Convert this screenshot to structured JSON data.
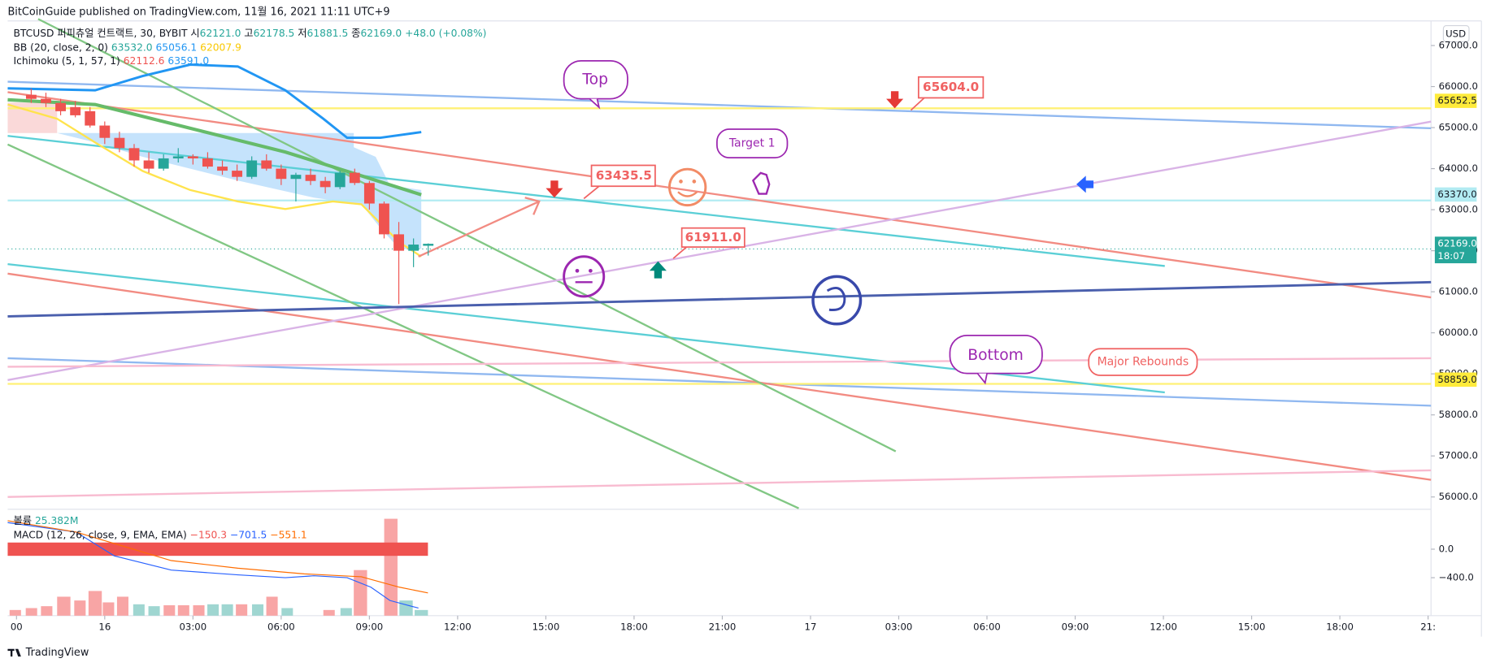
{
  "header": {
    "publisher": "BitCoinGuide published on TradingView.com, 11월 16, 2021 11:11 UTC+9"
  },
  "legend": {
    "symbol": "BTCUSD 퍼피츄얼 컨트랙트, 30, BYBIT",
    "o_label": "시",
    "o": "62121.0",
    "h_label": "고",
    "h": "62178.5",
    "l_label": "저",
    "l": "61881.5",
    "c_label": "종",
    "c": "62169.0",
    "change": "+48.0 (+0.08%)",
    "bb": "BB (20, close, 2, 0)",
    "bb_basis": "63532.0",
    "bb_upper": "65056.1",
    "bb_lower": "62007.9",
    "ichimoku": "Ichimoku (5, 1, 57, 1)",
    "ichi_a": "62112.6",
    "ichi_b": "63591.0",
    "volume": "볼륨",
    "volume_value": "25.382M",
    "macd": "MACD (12, 26, close, 9, EMA, EMA)",
    "macd_hist": "−150.3",
    "macd_line": "−701.5",
    "macd_signal": "−551.1"
  },
  "currency": "USD",
  "footer": "TradingView",
  "annotations": {
    "top": "Top",
    "target": "Target 1",
    "bottom": "Bottom",
    "rebounds": "Major Rebounds",
    "p1": "63435.5",
    "p2": "65604.0",
    "p3": "61911.0"
  },
  "chart_data": {
    "type": "candlestick",
    "up_color": "#26a69a",
    "down_color": "#ef5350",
    "x": [
      -2.5,
      -2,
      -1.5,
      -1,
      -0.5,
      0,
      0.5,
      1,
      1.5,
      2,
      2.5,
      3,
      3.5,
      4,
      4.5,
      5,
      5.5,
      6,
      6.5,
      7,
      7.5,
      8,
      8.5,
      9,
      9.5,
      10,
      10.5,
      11
    ],
    "open": [
      65800,
      65700,
      65600,
      65500,
      65400,
      65050,
      64750,
      64500,
      64200,
      64000,
      64250,
      64300,
      64250,
      64050,
      63950,
      63800,
      64200,
      64000,
      63750,
      63850,
      63700,
      63550,
      63900,
      63650,
      63150,
      62400,
      62000,
      62121
    ],
    "high": [
      65950,
      65850,
      65700,
      65650,
      65500,
      65150,
      64900,
      64600,
      64400,
      64350,
      64500,
      64350,
      64400,
      64200,
      64100,
      64300,
      64350,
      64100,
      63900,
      64000,
      63800,
      63950,
      64000,
      63700,
      63200,
      62700,
      62300,
      62178.5
    ],
    "low": [
      65600,
      65500,
      65300,
      65250,
      65000,
      64600,
      64400,
      64050,
      63900,
      63950,
      64150,
      64100,
      64000,
      63850,
      63700,
      63750,
      63950,
      63600,
      63200,
      63600,
      63400,
      63500,
      63600,
      63000,
      62300,
      60700,
      61600,
      61881.5
    ],
    "close": [
      65700,
      65600,
      65400,
      65300,
      65050,
      64750,
      64500,
      64200,
      64000,
      64250,
      64300,
      64250,
      64050,
      63950,
      63800,
      64200,
      64000,
      63750,
      63850,
      63700,
      63550,
      63900,
      63650,
      63150,
      62400,
      62000,
      62150,
      62169
    ],
    "ylim": [
      55700,
      67600
    ],
    "yticks": [
      {
        "value": 56000,
        "label": "56000.0"
      },
      {
        "value": 57000,
        "label": "57000.0"
      },
      {
        "value": 58000,
        "label": "58000.0"
      },
      {
        "value": 59000,
        "label": "59000.0"
      },
      {
        "value": 60000,
        "label": "60000.0"
      },
      {
        "value": 61000,
        "label": "61000.0"
      },
      {
        "value": 62000,
        "label": "62000.0"
      },
      {
        "value": 63000,
        "label": "63000.0"
      },
      {
        "value": 64000,
        "label": "64000.0"
      },
      {
        "value": 65000,
        "label": "65000.0"
      },
      {
        "value": 66000,
        "label": "66000.0"
      },
      {
        "value": 67000,
        "label": "67000.0"
      }
    ],
    "price_labels": [
      {
        "value": 65652.5,
        "label": "65652.5",
        "color": "#ffeb3b",
        "text_color": "#131722"
      },
      {
        "value": 63370.0,
        "label": "63370.0",
        "color": "#b2ebf2",
        "text_color": "#131722"
      },
      {
        "value": 62169.0,
        "label": "62169.0",
        "color": "#26a69a",
        "text_color": "#ffffff",
        "sub": "18:07"
      },
      {
        "value": 58859.0,
        "label": "58859.0",
        "color": "#ffeb3b",
        "text_color": "#131722"
      }
    ],
    "xlim": [
      -3.3,
      45.1
    ],
    "xticks": [
      {
        "value": -3,
        "label": "00"
      },
      {
        "value": 0,
        "label": "16"
      },
      {
        "value": 3,
        "label": "03:00"
      },
      {
        "value": 6,
        "label": "06:00"
      },
      {
        "value": 9,
        "label": "09:00"
      },
      {
        "value": 12,
        "label": "12:00"
      },
      {
        "value": 15,
        "label": "15:00"
      },
      {
        "value": 18,
        "label": "18:00"
      },
      {
        "value": 21,
        "label": "21:00"
      },
      {
        "value": 24,
        "label": "17"
      },
      {
        "value": 27,
        "label": "03:00"
      },
      {
        "value": 30,
        "label": "06:00"
      },
      {
        "value": 33,
        "label": "09:00"
      },
      {
        "value": 36,
        "label": "12:00"
      },
      {
        "value": 39,
        "label": "15:00"
      },
      {
        "value": 42,
        "label": "18:00"
      },
      {
        "value": 45,
        "label": "21:"
      }
    ],
    "macd_yticks": [
      {
        "value": 0,
        "label": "0.0"
      },
      {
        "value": -400,
        "label": "−400.0"
      }
    ]
  }
}
